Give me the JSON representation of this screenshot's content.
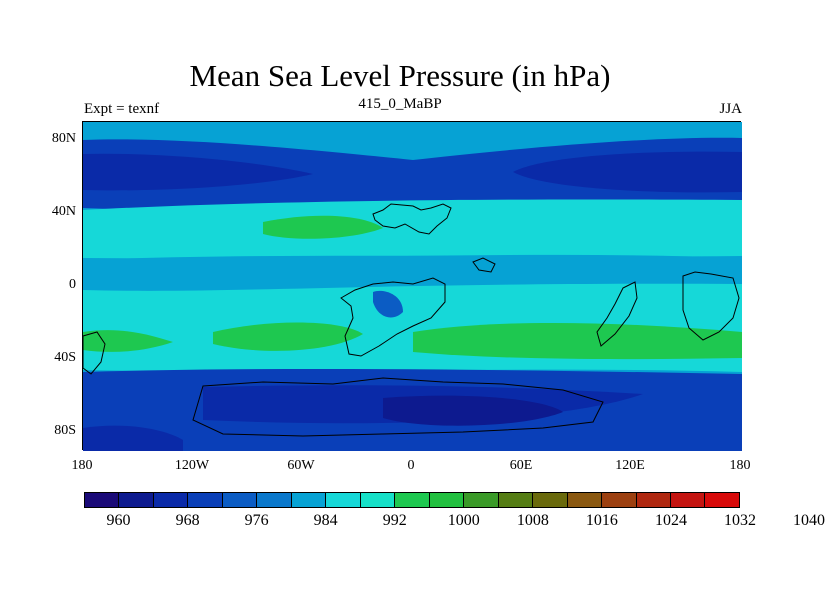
{
  "title": "Mean Sea Level Pressure (in hPa)",
  "subtitle": {
    "left": "Expt = texnf",
    "center": "415_0_MaBP",
    "right": "JJA"
  },
  "y_ticks": [
    "80N",
    "40N",
    "0",
    "40S",
    "80S"
  ],
  "x_ticks": [
    "180",
    "120W",
    "60W",
    "0",
    "60E",
    "120E",
    "180"
  ],
  "colorbar": {
    "colors": [
      "#1a0a78",
      "#0d1a8f",
      "#0a2aa8",
      "#0a3fb8",
      "#0b5cc4",
      "#0a78cc",
      "#06a2d4",
      "#16d8d8",
      "#16e0c8",
      "#1ec850",
      "#22c040",
      "#3a9a28",
      "#557d14",
      "#6a6a0c",
      "#8a5810",
      "#9c4010",
      "#b02810",
      "#c41410",
      "#d80a0a"
    ],
    "labels": [
      "960",
      "968",
      "976",
      "984",
      "992",
      "1000",
      "1008",
      "1016",
      "1024",
      "1032",
      "1040"
    ]
  }
}
